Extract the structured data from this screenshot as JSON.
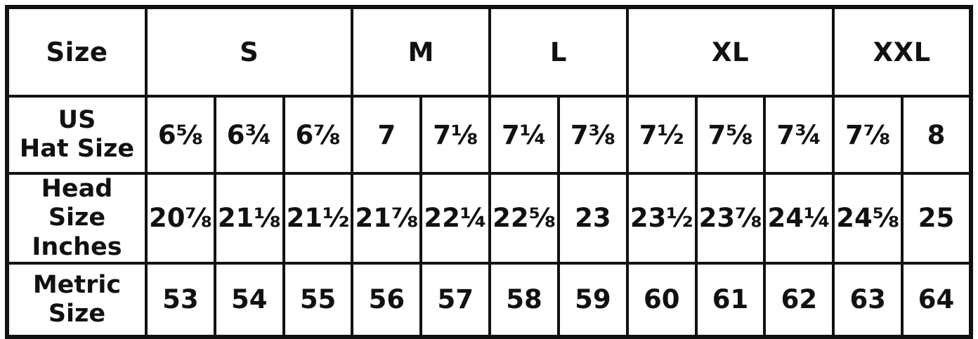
{
  "colors": {
    "border": "#111111",
    "text": "#111111",
    "background": "#ffffff"
  },
  "chart_data": {
    "type": "table",
    "header": {
      "corner_label": "Size",
      "groups": [
        {
          "label": "S",
          "span": 3
        },
        {
          "label": "M",
          "span": 2
        },
        {
          "label": "L",
          "span": 2
        },
        {
          "label": "XL",
          "span": 3
        },
        {
          "label": "XXL",
          "span": 2
        }
      ]
    },
    "rows": [
      {
        "label": "US\nHat Size",
        "values": [
          "6⅝",
          "6¾",
          "6⅞",
          "7",
          "7⅛",
          "7¼",
          "7⅜",
          "7½",
          "7⅝",
          "7¾",
          "7⅞",
          "8"
        ]
      },
      {
        "label": "Head Size\nInches",
        "values": [
          "20⅞",
          "21⅛",
          "21½",
          "21⅞",
          "22¼",
          "22⅝",
          "23",
          "23½",
          "23⅞",
          "24¼",
          "24⅝",
          "25"
        ]
      },
      {
        "label": "Metric\nSize",
        "values": [
          "53",
          "54",
          "55",
          "56",
          "57",
          "58",
          "59",
          "60",
          "61",
          "62",
          "63",
          "64"
        ]
      }
    ]
  }
}
